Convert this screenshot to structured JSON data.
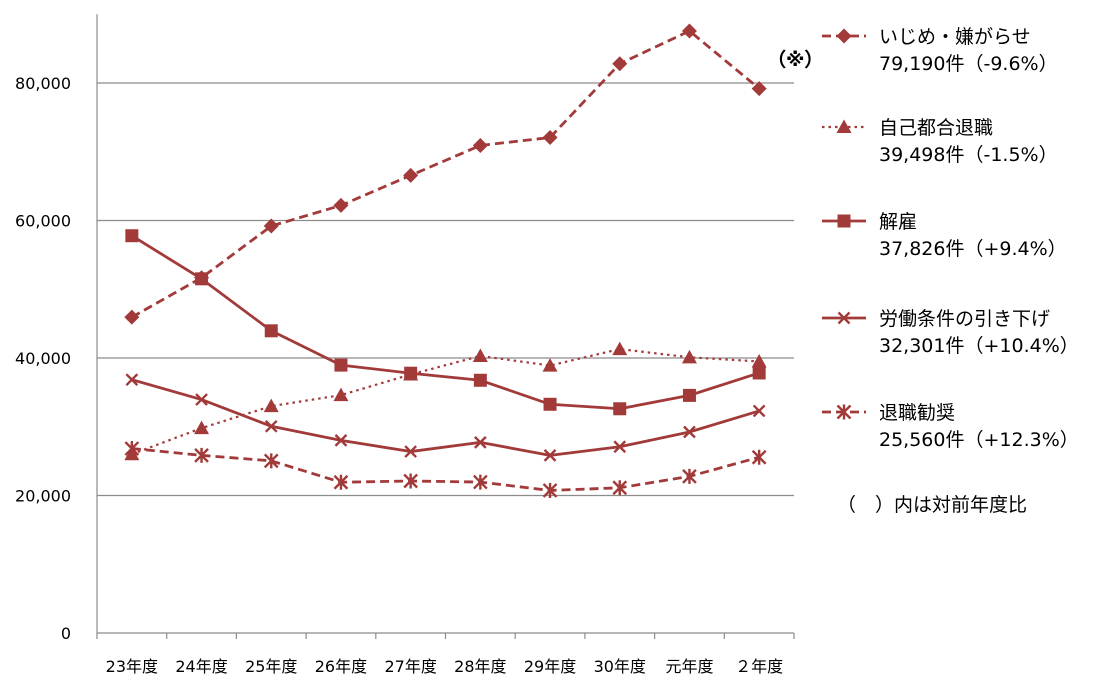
{
  "chart_data": {
    "type": "line",
    "categories": [
      "23年度",
      "24年度",
      "25年度",
      "26年度",
      "27年度",
      "28年度",
      "29年度",
      "30年度",
      "元年度",
      "２年度"
    ],
    "ylim": [
      0,
      90000
    ],
    "yticks": [
      0,
      20000,
      40000,
      60000,
      80000
    ],
    "ytick_labels": [
      "0",
      "20,000",
      "40,000",
      "60,000",
      "80,000"
    ],
    "grid": true,
    "legend_position": "right",
    "color": "#A23A3A",
    "series": [
      {
        "name": "いじめ・嫌がらせ",
        "detail": "79,190件（-9.6%）",
        "marker": "diamond",
        "dash": "dashed",
        "values": [
          45939,
          51670,
          59197,
          62191,
          66566,
          70917,
          72067,
          82797,
          87570,
          79190
        ]
      },
      {
        "name": "自己都合退職",
        "detail": "39,498件（-1.5%）",
        "marker": "triangle",
        "dash": "dotted",
        "values": [
          26000,
          29800,
          33000,
          34600,
          37600,
          40300,
          38900,
          41300,
          40100,
          39498
        ]
      },
      {
        "name": "解雇",
        "detail": "37,826件（+9.4%）",
        "marker": "square",
        "dash": "solid",
        "values": [
          57785,
          51515,
          43956,
          38966,
          37787,
          36760,
          33269,
          32614,
          34561,
          37826
        ]
      },
      {
        "name": "労働条件の引き下げ",
        "detail": "32,301件（+10.4%）",
        "marker": "x",
        "dash": "solid",
        "values": [
          36849,
          33955,
          30067,
          28015,
          26392,
          27723,
          25841,
          27089,
          29237,
          32301
        ]
      },
      {
        "name": "退職勧奨",
        "detail": "25,560件（+12.3%）",
        "marker": "asterisk",
        "dash": "dashed",
        "values": [
          26828,
          25838,
          25041,
          21928,
          22110,
          21954,
          20736,
          21125,
          22780,
          25560
        ]
      }
    ],
    "annotations": [
      "（※）"
    ],
    "note": "（　）内は対前年度比"
  }
}
